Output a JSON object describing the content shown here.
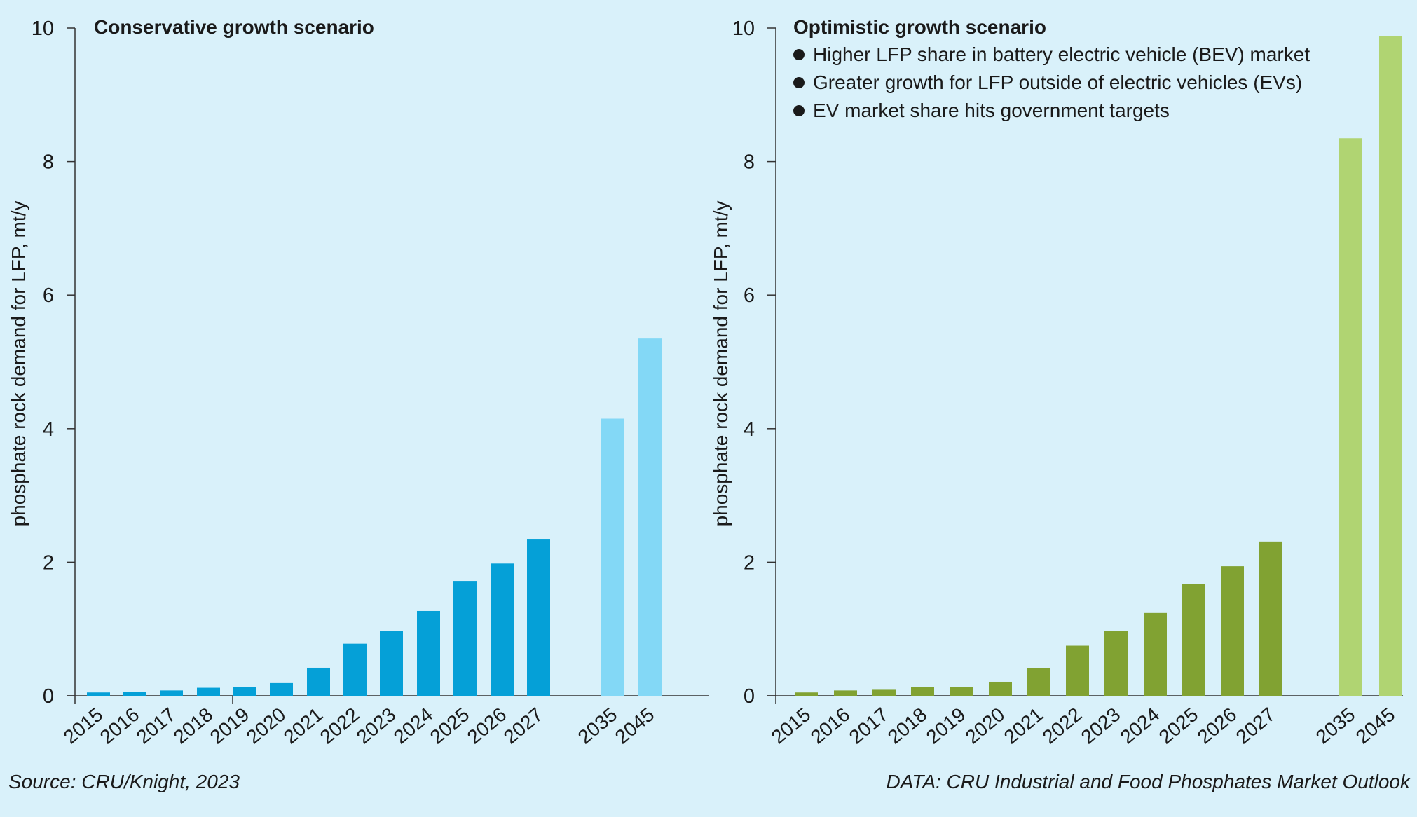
{
  "chart_data": [
    {
      "type": "bar",
      "title": "Conservative growth scenario",
      "bullets": [],
      "ylabel": "phosphate rock demand for LFP, mt/y",
      "xlabel": "",
      "ylim": [
        0,
        10
      ],
      "yticks": [
        0,
        2,
        4,
        6,
        8,
        10
      ],
      "categories": [
        "2015",
        "2016",
        "2017",
        "2018",
        "2019",
        "2020",
        "2021",
        "2022",
        "2023",
        "2024",
        "2025",
        "2026",
        "2027",
        "2035",
        "2045"
      ],
      "values": [
        0.05,
        0.06,
        0.08,
        0.12,
        0.13,
        0.19,
        0.42,
        0.78,
        0.97,
        1.27,
        1.72,
        1.98,
        2.35,
        4.15,
        5.35
      ],
      "colors": {
        "near": "#05a0d7",
        "far": "#83d8f6"
      },
      "far_categories": [
        "2035",
        "2045"
      ],
      "grid": false
    },
    {
      "type": "bar",
      "title": "Optimistic growth scenario",
      "bullets": [
        "Higher LFP share in battery electric vehicle (BEV) market",
        "Greater growth for LFP outside of electric vehicles (EVs)",
        "EV market share hits government targets"
      ],
      "ylabel": "phosphate rock demand for LFP, mt/y",
      "xlabel": "",
      "ylim": [
        0,
        10
      ],
      "yticks": [
        0,
        2,
        4,
        6,
        8,
        10
      ],
      "categories": [
        "2015",
        "2016",
        "2017",
        "2018",
        "2019",
        "2020",
        "2021",
        "2022",
        "2023",
        "2024",
        "2025",
        "2026",
        "2027",
        "2035",
        "2045"
      ],
      "values": [
        0.05,
        0.08,
        0.09,
        0.13,
        0.13,
        0.21,
        0.41,
        0.75,
        0.97,
        1.24,
        1.67,
        1.94,
        2.31,
        8.35,
        9.88
      ],
      "colors": {
        "near": "#81a232",
        "far": "#b0d472"
      },
      "far_categories": [
        "2035",
        "2045"
      ],
      "grid": false
    }
  ],
  "footer": {
    "source": "Source: CRU/Knight, 2023",
    "data_credit": "DATA: CRU Industrial and Food Phosphates Market Outlook"
  }
}
